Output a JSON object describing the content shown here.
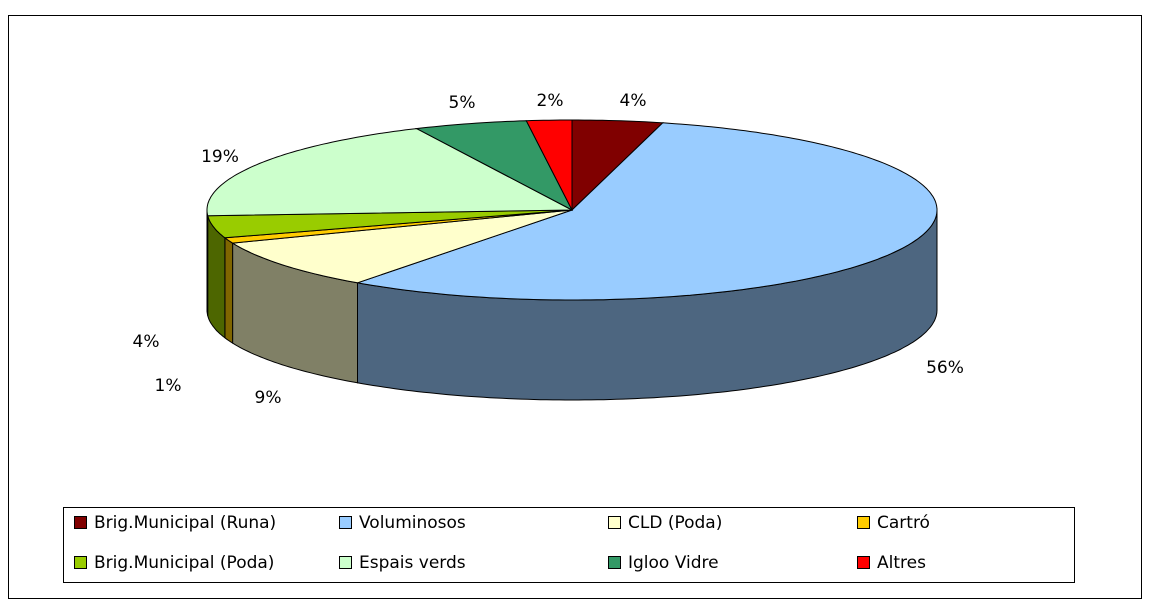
{
  "chart_data": {
    "type": "pie",
    "categories": [
      "Brig.Municipal (Runa)",
      "Voluminosos",
      "CLD (Poda)",
      "Cartró",
      "Brig.Municipal (Poda)",
      "Espais verds",
      "Igloo Vidre",
      "Altres"
    ],
    "values": [
      4,
      56,
      9,
      1,
      4,
      19,
      5,
      2
    ],
    "value_labels": [
      "4%",
      "56%",
      "9%",
      "1%",
      "4%",
      "19%",
      "5%",
      "2%"
    ],
    "colors": [
      "#800000",
      "#99ccff",
      "#ffffcc",
      "#ffcc00",
      "#99cc00",
      "#ccffcc",
      "#339966",
      "#ff0000"
    ],
    "legend": "bottom"
  }
}
